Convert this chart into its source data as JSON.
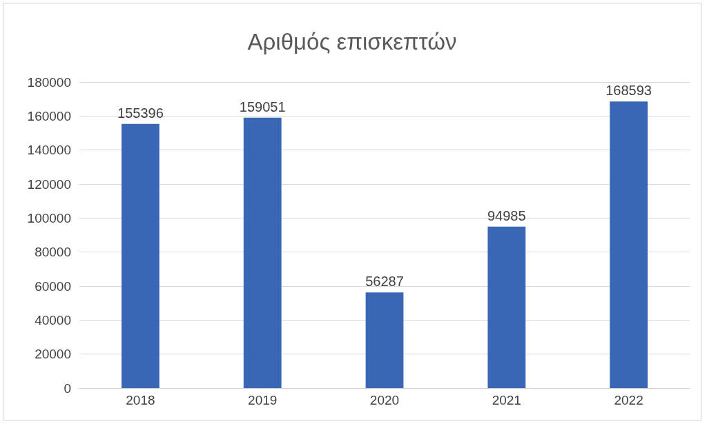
{
  "chart_data": {
    "type": "bar",
    "title": "Αριθμός επισκεπτών",
    "categories": [
      "2018",
      "2019",
      "2020",
      "2021",
      "2022"
    ],
    "values": [
      155396,
      159051,
      56287,
      94985,
      168593
    ],
    "color": "#3a67b5",
    "ylim": [
      0,
      180000
    ],
    "yticks": [
      0,
      20000,
      40000,
      60000,
      80000,
      100000,
      120000,
      140000,
      160000,
      180000
    ],
    "grid": "y",
    "data_labels": true
  }
}
